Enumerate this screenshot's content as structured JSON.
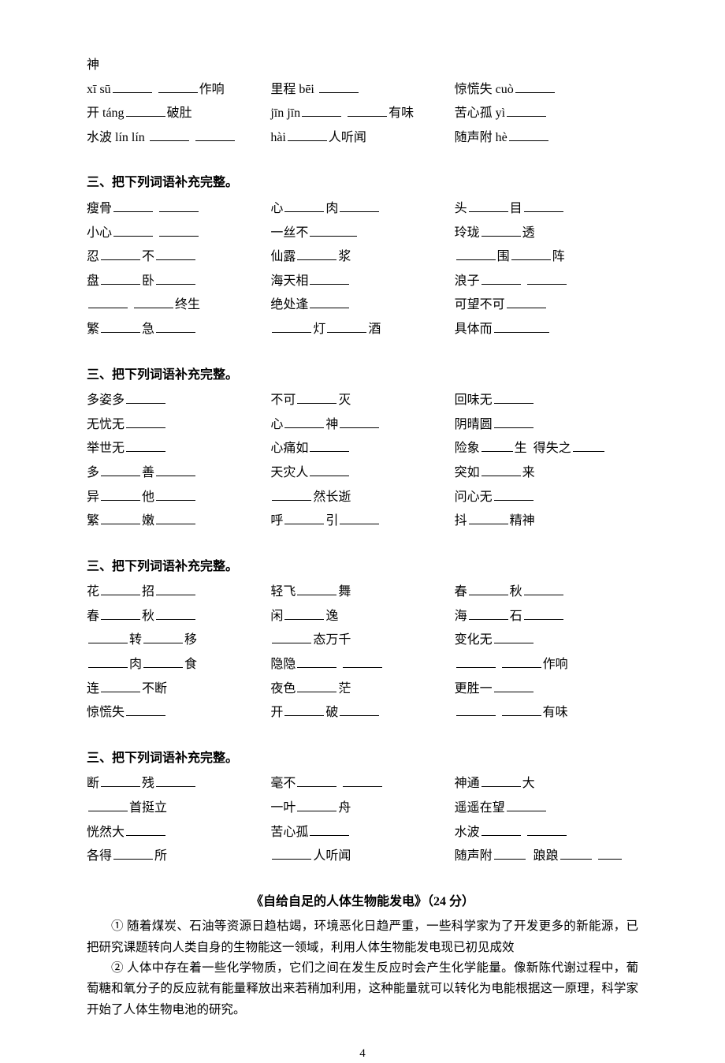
{
  "sec1": {
    "r1a": "神",
    "r2": {
      "a1": "xī sū",
      "a2": "作响",
      "b1": "里程 bēi",
      "c1": "惊慌失 cuò"
    },
    "r3": {
      "a1": "开 táng",
      "a2": "破肚",
      "b1": "jīn  jīn",
      "b2": "有味",
      "c1": "苦心孤 yì"
    },
    "r4": {
      "a1": "水波 lín lín",
      "b1": "hài",
      "b2": "人听闻",
      "c1": "随声附 hè"
    }
  },
  "heading": "三、把下列词语补充完整。",
  "sec2": {
    "r1": {
      "a": "瘦骨",
      "b1": "心",
      "b2": "肉",
      "c1": "头",
      "c2": "目"
    },
    "r2": {
      "a": "小心",
      "b": "一丝不",
      "c1": "玲珑",
      "c2": "透"
    },
    "r3": {
      "a1": "忍",
      "a2": "不",
      "b1": "仙露",
      "b2": "浆",
      "c1": "围",
      "c2": "阵"
    },
    "r4": {
      "a1": "盘",
      "a2": "卧",
      "b": "海天相",
      "c": "浪子"
    },
    "r5": {
      "a": "终生",
      "b": "绝处逢",
      "c": "可望不可"
    },
    "r6": {
      "a1": "繁",
      "a2": "急",
      "b1": "灯",
      "b2": "酒",
      "c": "具体而"
    }
  },
  "sec3": {
    "r1": {
      "a": "多姿多",
      "b1": "不可",
      "b2": "灭",
      "c": "回味无"
    },
    "r2": {
      "a": "无忧无",
      "b1": "心",
      "b2": "神",
      "c": "阴晴圆"
    },
    "r3": {
      "a": "举世无",
      "b": "心痛如",
      "c1": "险象",
      "c2": "生",
      "c3": "得失之"
    },
    "r4": {
      "a1": "多",
      "a2": "善",
      "b": "天灾人",
      "c1": "突如",
      "c2": "来"
    },
    "r5": {
      "a1": "异",
      "a2": "他",
      "b": "然长逝",
      "c": "问心无"
    },
    "r6": {
      "a1": "繁",
      "a2": "嫩",
      "b1": "呼",
      "b2": "引",
      "c1": "抖",
      "c2": "精神"
    }
  },
  "sec4": {
    "r1": {
      "a1": "花",
      "a2": "招",
      "b1": "轻飞",
      "b2": "舞",
      "c1": "春",
      "c2": "秋"
    },
    "r2": {
      "a1": "春",
      "a2": "秋",
      "b1": "闲",
      "b2": "逸",
      "c1": "海",
      "c2": "石"
    },
    "r3": {
      "a1": "转",
      "a2": "移",
      "b": "态万千",
      "c": "变化无"
    },
    "r4": {
      "a1": "肉",
      "a2": "食",
      "b": "隐隐",
      "c": "作响"
    },
    "r5": {
      "a1": "连",
      "a2": "不断",
      "b1": "夜色",
      "b2": "茫",
      "c": "更胜一"
    },
    "r6": {
      "a": "惊慌失",
      "b1": "开",
      "b2": "破",
      "c": "有味"
    }
  },
  "sec5": {
    "r1": {
      "a1": "断",
      "a2": "残",
      "b": "毫不",
      "c1": "神通",
      "c2": "大"
    },
    "r2": {
      "a": "首挺立",
      "b1": "一叶",
      "b2": "舟",
      "c": "遥遥在望"
    },
    "r3": {
      "a": "恍然大",
      "b": "苦心孤",
      "c": "水波"
    },
    "r4": {
      "a1": "各得",
      "a2": "所",
      "b": "人听闻",
      "c1": "随声附",
      "c2": "踉踉"
    }
  },
  "article": {
    "title": "《自给自足的人体生物能发电》（24 分）",
    "p1": "① 随着煤炭、石油等资源日趋枯竭，环境恶化日趋严重，一些科学家为了开发更多的新能源，已把研究课题转向人类自身的生物能这一领域，利用人体生物能发电现已初见成效",
    "p2": "② 人体中存在着一些化学物质，它们之间在发生反应时会产生化学能量。像新陈代谢过程中，葡萄糖和氧分子的反应就有能量释放出来若稍加利用，这种能量就可以转化为电能根据这一原理，科学家开始了人体生物电池的研究。"
  },
  "pagenum": "4"
}
